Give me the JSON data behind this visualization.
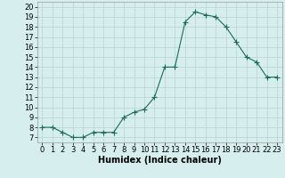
{
  "x": [
    0,
    1,
    2,
    3,
    4,
    5,
    6,
    7,
    8,
    9,
    10,
    11,
    12,
    13,
    14,
    15,
    16,
    17,
    18,
    19,
    20,
    21,
    22,
    23
  ],
  "y": [
    8.0,
    8.0,
    7.5,
    7.0,
    7.0,
    7.5,
    7.5,
    7.5,
    9.0,
    9.5,
    9.8,
    11.0,
    14.0,
    14.0,
    18.5,
    19.5,
    19.2,
    19.0,
    18.0,
    16.5,
    15.0,
    14.5,
    13.0,
    13.0
  ],
  "line_color": "#1a6b5a",
  "marker": "+",
  "marker_size": 4,
  "bg_color": "#d6eeee",
  "grid_color": "#b8d4d4",
  "xlabel": "Humidex (Indice chaleur)",
  "ylabel_ticks": [
    7,
    8,
    9,
    10,
    11,
    12,
    13,
    14,
    15,
    16,
    17,
    18,
    19,
    20
  ],
  "xlim": [
    -0.5,
    23.5
  ],
  "ylim": [
    6.5,
    20.5
  ],
  "label_fontsize": 7,
  "tick_fontsize": 6
}
